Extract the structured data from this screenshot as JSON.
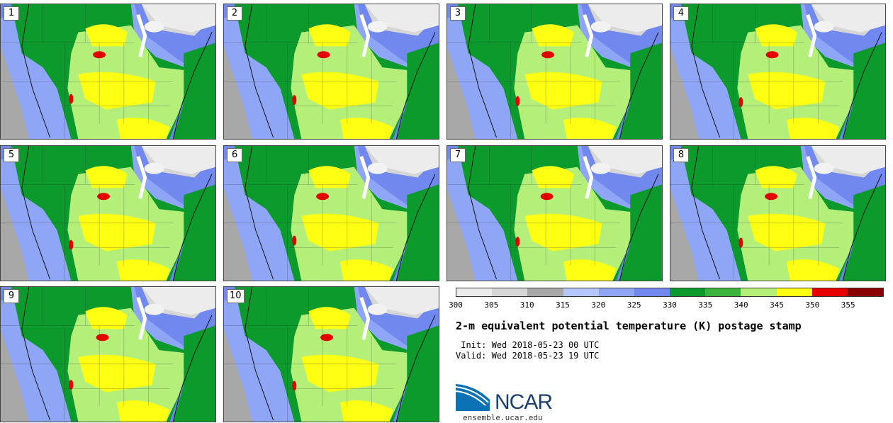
{
  "stamps": [
    {
      "label": "1"
    },
    {
      "label": "2"
    },
    {
      "label": "3"
    },
    {
      "label": "4"
    },
    {
      "label": "5"
    },
    {
      "label": "6"
    },
    {
      "label": "7"
    },
    {
      "label": "8"
    },
    {
      "label": "9"
    },
    {
      "label": "10"
    }
  ],
  "colorbar": {
    "tick_labels": [
      "300",
      "305",
      "310",
      "315",
      "320",
      "325",
      "330",
      "335",
      "340",
      "345",
      "350",
      "355"
    ],
    "colors": [
      "#ececec",
      "#d6d6d6",
      "#a8a8a8",
      "#b4c6fa",
      "#8ea6f5",
      "#7188ee",
      "#0c9a2c",
      "#3cb43c",
      "#b4ef7a",
      "#ffff14",
      "#e60000",
      "#8b0000"
    ]
  },
  "title": "2-m equivalent potential temperature (K) postage stamp",
  "init": " Init: Wed 2018-05-23 00 UTC",
  "valid": "Valid: Wed 2018-05-23 19 UTC",
  "logo": {
    "text": "NCAR",
    "url": "ensemble.ucar.edu"
  }
}
